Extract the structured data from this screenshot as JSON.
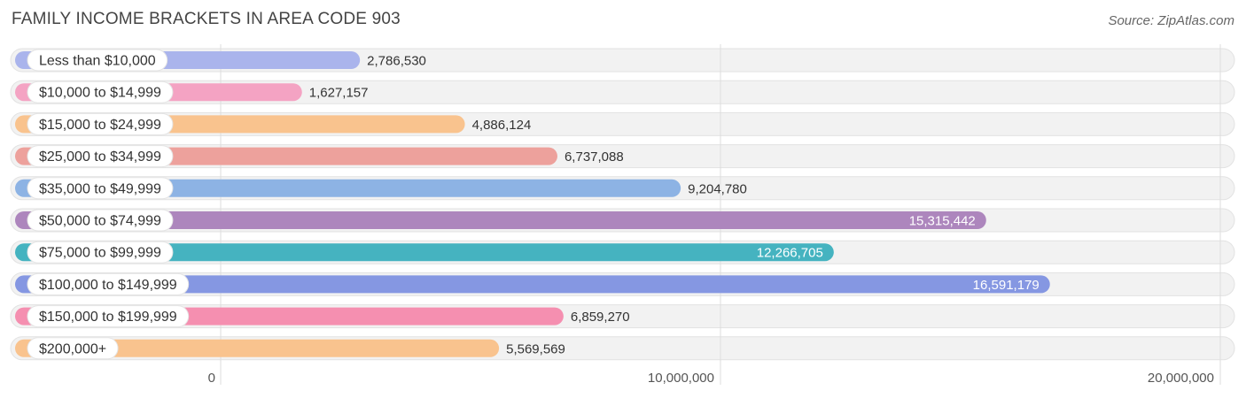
{
  "header": {
    "title": "FAMILY INCOME BRACKETS IN AREA CODE 903",
    "source": "Source: ZipAtlas.com"
  },
  "chart_data": {
    "type": "bar",
    "orientation": "horizontal",
    "title": "FAMILY INCOME BRACKETS IN AREA CODE 903",
    "categories": [
      "Less than $10,000",
      "$10,000 to $14,999",
      "$15,000 to $24,999",
      "$25,000 to $34,999",
      "$35,000 to $49,999",
      "$50,000 to $74,999",
      "$75,000 to $99,999",
      "$100,000 to $149,999",
      "$150,000 to $199,999",
      "$200,000+"
    ],
    "values": [
      2786530,
      1627157,
      4886124,
      6737088,
      9204780,
      15315442,
      12266705,
      16591179,
      6859270,
      5569569
    ],
    "value_labels": [
      "2,786,530",
      "1,627,157",
      "4,886,124",
      "6,737,088",
      "9,204,780",
      "15,315,442",
      "12,266,705",
      "16,591,179",
      "6,859,270",
      "5,569,569"
    ],
    "colors": [
      "#aab4ec",
      "#f4a3c3",
      "#f9c38e",
      "#eda19c",
      "#8db3e4",
      "#ad86bd",
      "#45b3c0",
      "#8597e2",
      "#f58fb0",
      "#f9c38e"
    ],
    "xlim": [
      0,
      20000000
    ],
    "xticks": [
      0,
      10000000,
      20000000
    ],
    "xtick_labels": [
      "0",
      "10,000,000",
      "20,000,000"
    ],
    "grid": true,
    "xlabel": "",
    "ylabel": ""
  }
}
